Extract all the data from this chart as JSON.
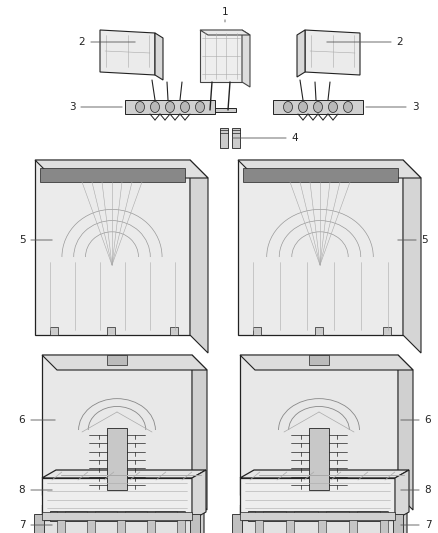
{
  "background_color": "#ffffff",
  "figsize": [
    4.38,
    5.33
  ],
  "dpi": 100,
  "line_color": "#444444",
  "label_fontsize": 7.5,
  "fill_color": "#f0f0f0",
  "dark_line": "#222222"
}
